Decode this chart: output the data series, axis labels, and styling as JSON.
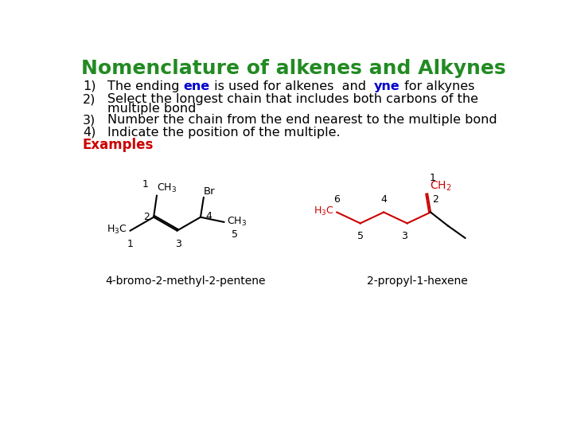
{
  "title": "Nomenclature of alkenes and Alkynes",
  "title_color": "#228B22",
  "title_fontsize": 18,
  "bg_color": "#ffffff",
  "examples_label": "Examples",
  "examples_color": "#cc0000",
  "label1": "4-bromo-2-methyl-2-pentene",
  "label2": "2-propyl-1-hexene",
  "item_fontsize": 11.5,
  "line1_black1": "The ending ",
  "line1_ene": "ene",
  "line1_black2": " is used for alkenes  and  ",
  "line1_yne": "yne",
  "line1_black3": " for alkynes",
  "line2": "Select the longest chain that includes both carbons of the",
  "line2b": "multiple bond",
  "line3": "Number the chain from the end nearest to the multiple bond",
  "line4": "Indicate the position of the multiple.",
  "colored_word_color": "#0000cc",
  "black": "#000000",
  "mol_black": "#000000",
  "mol_red": "#cc0000"
}
